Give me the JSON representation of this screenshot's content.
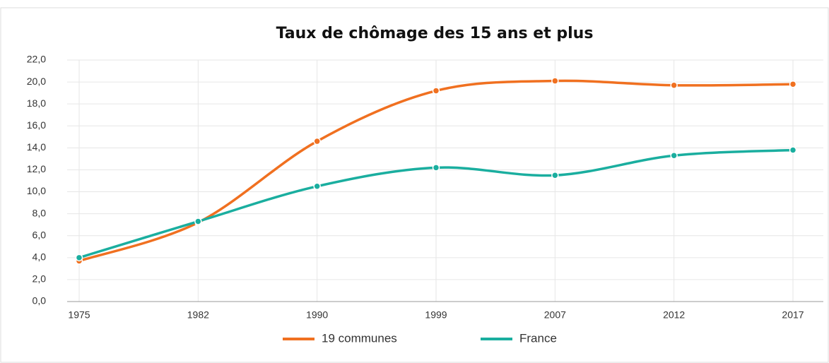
{
  "chart_data": {
    "type": "line",
    "title": "Taux de chômage des 15 ans et plus",
    "categories": [
      "1975",
      "1982",
      "1990",
      "1999",
      "2007",
      "2012",
      "2017"
    ],
    "series": [
      {
        "name": "19 communes",
        "color": "#f07020",
        "values": [
          3.7,
          7.2,
          14.6,
          19.2,
          20.1,
          19.7,
          19.8
        ]
      },
      {
        "name": "France",
        "color": "#1aae9f",
        "values": [
          4.0,
          7.3,
          10.5,
          12.2,
          11.5,
          13.3,
          13.8
        ]
      }
    ],
    "ylim": [
      0,
      22
    ],
    "yticks": [
      {
        "value": 0,
        "label": "0,0"
      },
      {
        "value": 2,
        "label": "2,0"
      },
      {
        "value": 4,
        "label": "4,0"
      },
      {
        "value": 6,
        "label": "6,0"
      },
      {
        "value": 8,
        "label": "8,0"
      },
      {
        "value": 10,
        "label": "10,0"
      },
      {
        "value": 12,
        "label": "12,0"
      },
      {
        "value": 14,
        "label": "14,0"
      },
      {
        "value": 16,
        "label": "16,0"
      },
      {
        "value": 18,
        "label": "18,0"
      },
      {
        "value": 20,
        "label": "20,0"
      },
      {
        "value": 22,
        "label": "22,0"
      }
    ],
    "grid": true,
    "legend": "bottom"
  }
}
